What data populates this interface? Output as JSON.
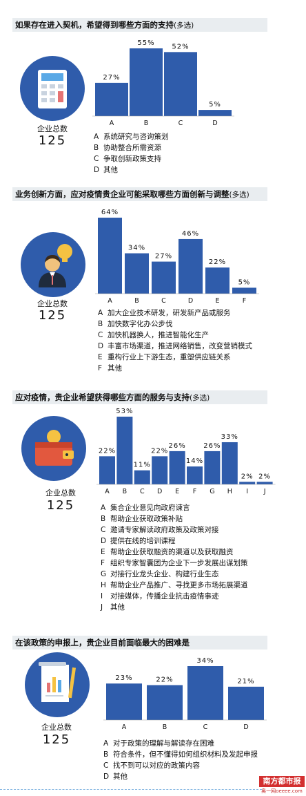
{
  "colors": {
    "bar": "#2f5cab",
    "circle": "#2f5cab",
    "title_bg": "#e9edf0"
  },
  "brand": {
    "name": "南方都市报",
    "site": "奥一网oeeee.com"
  },
  "sections": [
    {
      "title": "如果存在进入契机，希望得到哪些方面的支持",
      "suffix": "(多选)",
      "icon": "calculator-icon",
      "total_label": "企业总数",
      "total_value": "125",
      "legend": [
        {
          "key": "A",
          "text": "系统研究与咨询策划"
        },
        {
          "key": "B",
          "text": "协助整合所需资源"
        },
        {
          "key": "C",
          "text": "争取创新政策支持"
        },
        {
          "key": "D",
          "text": "其他"
        }
      ]
    },
    {
      "title": "业务创新方面，应对疫情贵企业可能采取哪些方面创新与调整",
      "suffix": "(多选)",
      "icon": "businessman-idea-icon",
      "total_label": "企业总数",
      "total_value": "125",
      "legend": [
        {
          "key": "A",
          "text": "加大企业技术研发，研发新产品或服务"
        },
        {
          "key": "B",
          "text": "加快数字化办公步伐"
        },
        {
          "key": "C",
          "text": "加快机器换人，推进智能化生产"
        },
        {
          "key": "D",
          "text": "丰富市场渠道，推进网络销售，改变营销模式"
        },
        {
          "key": "E",
          "text": "重构行业上下游生态，重塑供应链关系"
        },
        {
          "key": "F",
          "text": "其他"
        }
      ]
    },
    {
      "title": "应对疫情，贵企业希望获得哪些方面的服务与支持",
      "suffix": "(多选)",
      "icon": "wallet-coin-icon",
      "total_label": "企业总数",
      "total_value": "125",
      "legend": [
        {
          "key": "A",
          "text": "集合企业意见向政府谏言"
        },
        {
          "key": "B",
          "text": "帮助企业获取政策补贴"
        },
        {
          "key": "C",
          "text": "邀请专家解读政府政策及政策对接"
        },
        {
          "key": "D",
          "text": "提供在线的培训课程"
        },
        {
          "key": "E",
          "text": "帮助企业获取融资的渠道以及获取融资"
        },
        {
          "key": "F",
          "text": "组织专家智囊团为企业下一步发展出谋划策"
        },
        {
          "key": "G",
          "text": "对接行业龙头企业、构建行业生态"
        },
        {
          "key": "H",
          "text": "帮助企业产品推广、寻找更多市场拓展渠道"
        },
        {
          "key": "I",
          "text": "对接媒体，传播企业抗击疫情事迹"
        },
        {
          "key": "J",
          "text": "其他"
        }
      ]
    },
    {
      "title": "在该政策的申报上，贵企业目前面临最大的困难是",
      "suffix": "",
      "icon": "document-chart-icon",
      "total_label": "企业总数",
      "total_value": "125",
      "legend": [
        {
          "key": "A",
          "text": "对于政策的理解与解读存在困难"
        },
        {
          "key": "B",
          "text": "符合条件，但不懂得如何组织材料及发起申报"
        },
        {
          "key": "C",
          "text": "找不到可以对应的政策内容"
        },
        {
          "key": "D",
          "text": "其他"
        }
      ]
    }
  ],
  "chart_data": [
    {
      "type": "bar",
      "title": "如果存在进入契机，希望得到哪些方面的支持(多选)",
      "categories": [
        "A",
        "B",
        "C",
        "D"
      ],
      "values": [
        27,
        55,
        52,
        5
      ],
      "labels": [
        "27%",
        "55%",
        "52%",
        "5%"
      ],
      "ylim": [
        0,
        55
      ]
    },
    {
      "type": "bar",
      "title": "业务创新方面，应对疫情贵企业可能采取哪些方面创新与调整(多选)",
      "categories": [
        "A",
        "B",
        "C",
        "D",
        "E",
        "F"
      ],
      "values": [
        64,
        34,
        27,
        46,
        22,
        5
      ],
      "labels": [
        "64%",
        "34%",
        "27%",
        "46%",
        "22%",
        "5%"
      ],
      "ylim": [
        0,
        64
      ]
    },
    {
      "type": "bar",
      "title": "应对疫情，贵企业希望获得哪些方面的服务与支持(多选)",
      "categories": [
        "A",
        "B",
        "C",
        "D",
        "E",
        "F",
        "G",
        "H",
        "I",
        "J"
      ],
      "values": [
        22,
        53,
        11,
        22,
        26,
        14,
        26,
        33,
        2,
        2
      ],
      "labels": [
        "22%",
        "53%",
        "11%",
        "22%",
        "26%",
        "14%",
        "26%",
        "33%",
        "2%",
        "2%"
      ],
      "ylim": [
        0,
        53
      ]
    },
    {
      "type": "bar",
      "title": "在该政策的申报上，贵企业目前面临最大的困难是",
      "categories": [
        "A",
        "B",
        "C",
        "D"
      ],
      "values": [
        23,
        22,
        34,
        21
      ],
      "labels": [
        "23%",
        "22%",
        "34%",
        "21%"
      ],
      "ylim": [
        0,
        34
      ]
    }
  ]
}
